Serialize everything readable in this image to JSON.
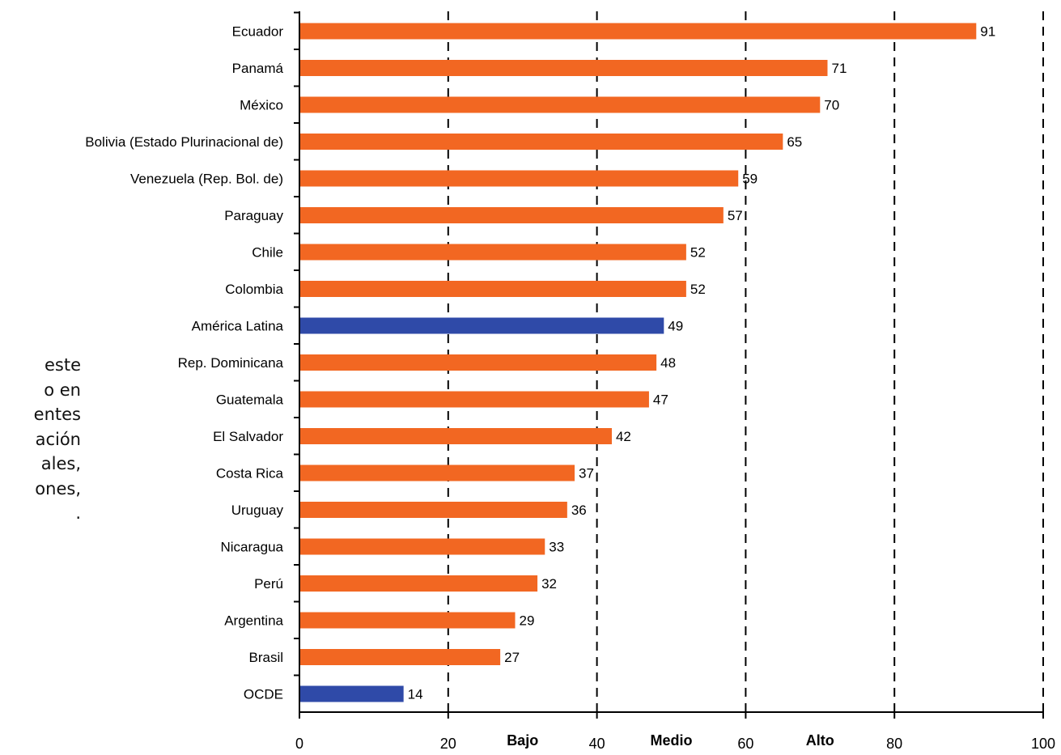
{
  "side_text": {
    "lines": [
      "este",
      "o en",
      "entes",
      "ación",
      "ales,",
      "ones,",
      "."
    ]
  },
  "chart_data": {
    "type": "bar",
    "orientation": "horizontal",
    "title": "",
    "xlabel": "",
    "ylabel": "",
    "xlim": [
      0,
      100
    ],
    "xticks": [
      0,
      20,
      40,
      60,
      80,
      100
    ],
    "grid": "vertical dashed lines at 20, 40, 60, 80, 100",
    "categories": [
      "Ecuador",
      "Panamá",
      "México",
      "Bolivia (Estado Plurinacional de)",
      "Venezuela (Rep. Bol. de)",
      "Paraguay",
      "Chile",
      "Colombia",
      "América Latina",
      "Rep. Dominicana",
      "Guatemala",
      "El Salvador",
      "Costa Rica",
      "Uruguay",
      "Nicaragua",
      "Perú",
      "Argentina",
      "Brasil",
      "OCDE"
    ],
    "values": [
      91,
      71,
      70,
      65,
      59,
      57,
      52,
      52,
      49,
      48,
      47,
      42,
      37,
      36,
      33,
      32,
      29,
      27,
      14
    ],
    "highlighted": [
      "América Latina",
      "OCDE"
    ],
    "colors": {
      "default": "#f26722",
      "highlight": "#2f4aa8"
    },
    "band_labels": [
      {
        "text": "Bajo",
        "x": 30
      },
      {
        "text": "Medio",
        "x": 50
      },
      {
        "text": "Alto",
        "x": 70
      }
    ]
  }
}
